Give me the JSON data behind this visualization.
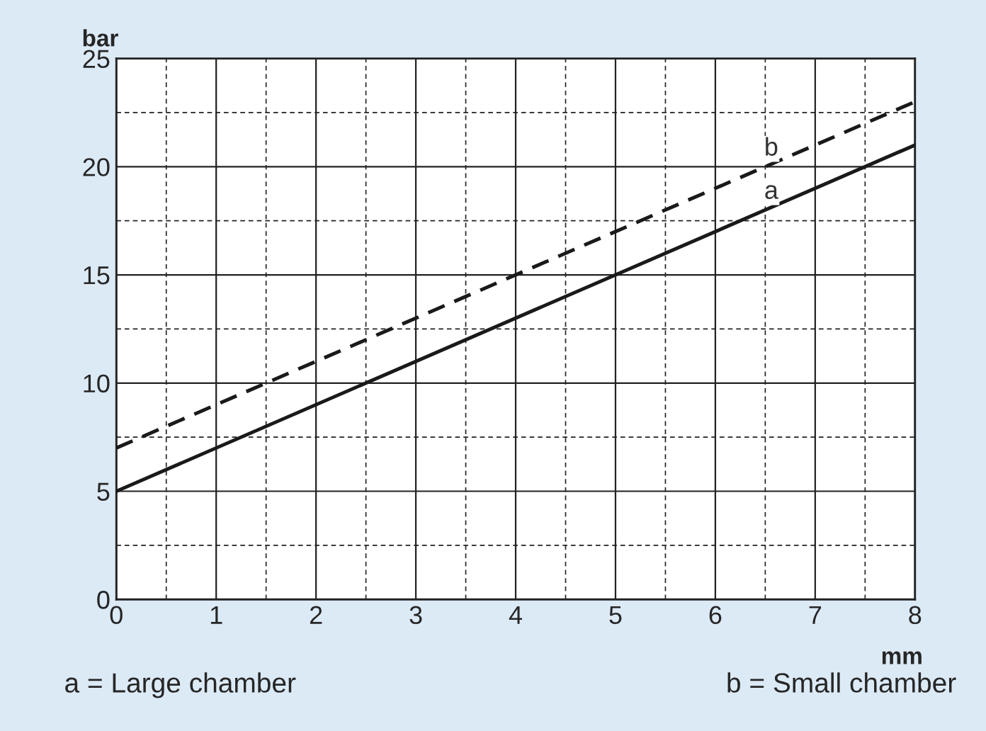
{
  "chart_data": {
    "type": "line",
    "xlabel": "mm",
    "ylabel": "bar",
    "x": [
      0,
      8
    ],
    "series": [
      {
        "name": "a",
        "color": "#1a1a1a",
        "values": [
          5,
          21
        ],
        "line_style": "solid"
      },
      {
        "name": "b",
        "color": "#1a1a1a",
        "values": [
          7,
          23
        ],
        "line_style": "dashed"
      }
    ],
    "xlim": [
      0,
      8
    ],
    "ylim": [
      0,
      25
    ],
    "xticks": [
      0,
      1,
      2,
      3,
      4,
      5,
      6,
      7,
      8
    ],
    "yticks": [
      0,
      5,
      10,
      15,
      20,
      25
    ],
    "grid": true,
    "legend": false,
    "marker": "none",
    "annotations": [
      "a = Large chamber",
      "b = Small chamber"
    ]
  }
}
